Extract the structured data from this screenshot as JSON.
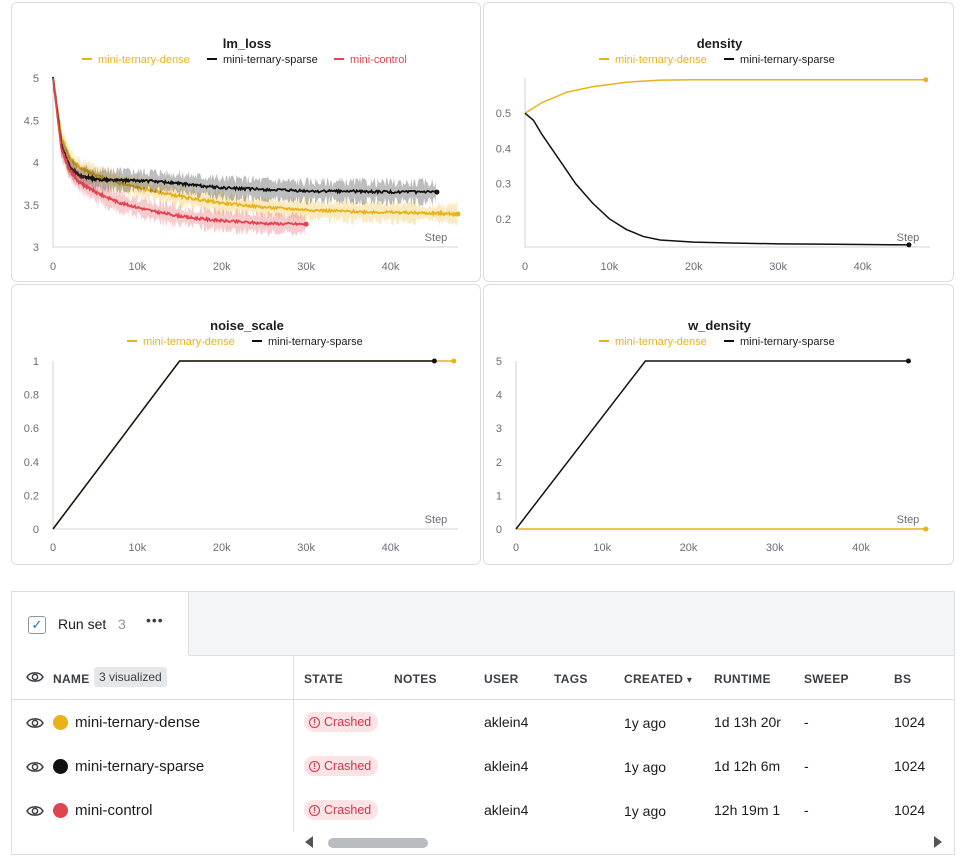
{
  "colors": {
    "dense": "#e8b21b",
    "sparse": "#111111",
    "control": "#e0444f"
  },
  "chart_data": [
    {
      "type": "line",
      "title": "lm_loss",
      "xlabel": "Step",
      "x_ticks": [
        "0",
        "10k",
        "20k",
        "30k",
        "40k"
      ],
      "y_ticks": [
        "5",
        "4.5",
        "4",
        "3.5",
        "3"
      ],
      "xlim": [
        0,
        48000
      ],
      "ylim": [
        3,
        5
      ],
      "legend_position": "top",
      "series": [
        {
          "name": "mini-ternary-dense",
          "color": "#e8b21b",
          "band": 0.12,
          "x": [
            0,
            1000,
            2000,
            3000,
            5000,
            8000,
            12000,
            16000,
            20000,
            25000,
            30000,
            35000,
            40000,
            45000,
            48000
          ],
          "y": [
            5.0,
            4.3,
            4.05,
            3.95,
            3.85,
            3.75,
            3.66,
            3.58,
            3.52,
            3.47,
            3.44,
            3.42,
            3.41,
            3.4,
            3.39
          ]
        },
        {
          "name": "mini-ternary-sparse",
          "color": "#111111",
          "band": 0.13,
          "x": [
            0,
            1000,
            2000,
            3000,
            5000,
            8000,
            12000,
            16000,
            20000,
            25000,
            30000,
            35000,
            40000,
            45500
          ],
          "y": [
            5.0,
            4.2,
            3.95,
            3.85,
            3.8,
            3.79,
            3.78,
            3.74,
            3.7,
            3.68,
            3.66,
            3.66,
            3.65,
            3.65
          ]
        },
        {
          "name": "mini-control",
          "color": "#e0444f",
          "band": 0.12,
          "x": [
            0,
            1000,
            2000,
            3000,
            5000,
            8000,
            12000,
            16000,
            20000,
            25000,
            30000
          ],
          "y": [
            5.0,
            4.15,
            3.9,
            3.78,
            3.65,
            3.52,
            3.42,
            3.35,
            3.31,
            3.28,
            3.27
          ]
        }
      ]
    },
    {
      "type": "line",
      "title": "density",
      "xlabel": "Step",
      "x_ticks": [
        "0",
        "10k",
        "20k",
        "30k",
        "40k"
      ],
      "y_ticks": [
        "0.5",
        "0.4",
        "0.3",
        "0.2"
      ],
      "xlim": [
        0,
        48000
      ],
      "ylim": [
        0.12,
        0.6
      ],
      "legend_position": "top",
      "series": [
        {
          "name": "mini-ternary-dense",
          "color": "#e8b21b",
          "x": [
            0,
            2000,
            5000,
            8000,
            12000,
            16000,
            20000,
            30000,
            40000,
            47500
          ],
          "y": [
            0.5,
            0.53,
            0.56,
            0.575,
            0.588,
            0.594,
            0.595,
            0.595,
            0.595,
            0.595
          ]
        },
        {
          "name": "mini-ternary-sparse",
          "color": "#111111",
          "x": [
            0,
            1000,
            2000,
            4000,
            6000,
            8000,
            10000,
            12000,
            14000,
            16000,
            20000,
            25000,
            30000,
            35000,
            40000,
            45500
          ],
          "y": [
            0.5,
            0.48,
            0.44,
            0.37,
            0.3,
            0.245,
            0.2,
            0.17,
            0.15,
            0.14,
            0.134,
            0.131,
            0.129,
            0.128,
            0.127,
            0.126
          ]
        }
      ]
    },
    {
      "type": "line",
      "title": "noise_scale",
      "xlabel": "Step",
      "x_ticks": [
        "0",
        "10k",
        "20k",
        "30k",
        "40k"
      ],
      "y_ticks": [
        "1",
        "0.8",
        "0.6",
        "0.4",
        "0.2",
        "0"
      ],
      "xlim": [
        0,
        48000
      ],
      "ylim": [
        0,
        1
      ],
      "legend_position": "top",
      "series": [
        {
          "name": "mini-ternary-dense",
          "color": "#e8b21b",
          "x": [
            0,
            15000,
            47500
          ],
          "y": [
            0,
            1,
            1
          ]
        },
        {
          "name": "mini-ternary-sparse",
          "color": "#111111",
          "x": [
            0,
            15000,
            45200
          ],
          "y": [
            0,
            1,
            1
          ]
        }
      ]
    },
    {
      "type": "line",
      "title": "w_density",
      "xlabel": "Step",
      "x_ticks": [
        "0",
        "10k",
        "20k",
        "30k",
        "40k"
      ],
      "y_ticks": [
        "5",
        "4",
        "3",
        "2",
        "1",
        "0"
      ],
      "xlim": [
        0,
        48000
      ],
      "ylim": [
        0,
        5
      ],
      "legend_position": "top",
      "series": [
        {
          "name": "mini-ternary-dense",
          "color": "#e8b21b",
          "x": [
            0,
            47500
          ],
          "y": [
            0,
            0
          ]
        },
        {
          "name": "mini-ternary-sparse",
          "color": "#111111",
          "x": [
            0,
            15000,
            45500
          ],
          "y": [
            0,
            5,
            5
          ]
        }
      ]
    }
  ],
  "runs": {
    "tab_label": "Run set",
    "tab_count": "3",
    "more_icon": "•••",
    "visualized": "3 visualized",
    "headers": [
      "NAME",
      "STATE",
      "NOTES",
      "USER",
      "TAGS",
      "CREATED",
      "RUNTIME",
      "SWEEP",
      "BS"
    ],
    "sort_indicator": "▾",
    "rows": [
      {
        "name": "mini-ternary-dense",
        "color": "#e8b21b",
        "state": "Crashed",
        "notes": "",
        "user": "aklein4",
        "tags": "",
        "created": "1y ago",
        "runtime": "1d 13h 20r",
        "sweep": "-",
        "bs": "1024"
      },
      {
        "name": "mini-ternary-sparse",
        "color": "#111111",
        "state": "Crashed",
        "notes": "",
        "user": "aklein4",
        "tags": "",
        "created": "1y ago",
        "runtime": "1d 12h 6m",
        "sweep": "-",
        "bs": "1024"
      },
      {
        "name": "mini-control",
        "color": "#e0444f",
        "state": "Crashed",
        "notes": "",
        "user": "aklein4",
        "tags": "",
        "created": "1y ago",
        "runtime": "12h 19m 1",
        "sweep": "-",
        "bs": "1024"
      }
    ]
  }
}
